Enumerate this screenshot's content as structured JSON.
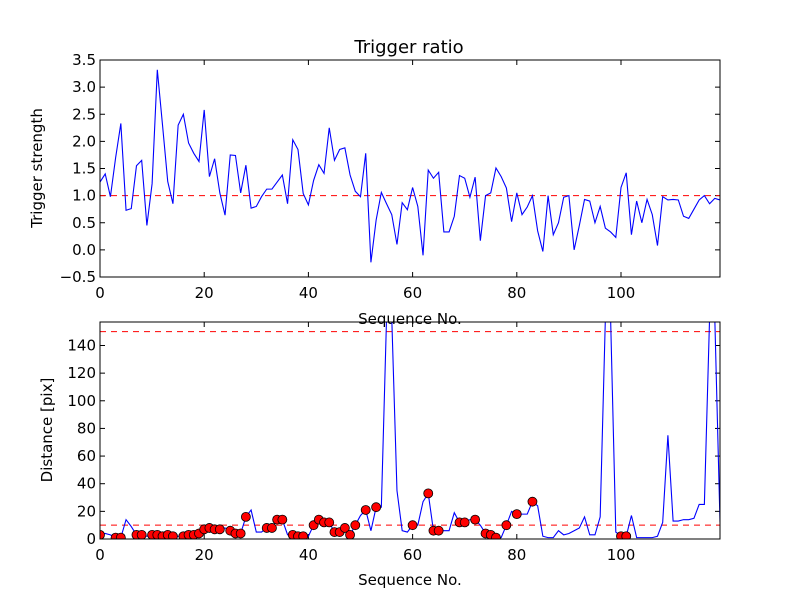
{
  "chart_data": [
    {
      "type": "line",
      "title": "Trigger ratio",
      "xlabel": "Sequence No.",
      "ylabel": "Trigger strength",
      "xlim": [
        0,
        119
      ],
      "ylim": [
        -0.5,
        3.5
      ],
      "xticks": [
        0,
        20,
        40,
        60,
        80,
        100
      ],
      "yticks": [
        -0.5,
        0.0,
        0.5,
        1.0,
        1.5,
        2.0,
        2.5,
        3.0,
        3.5
      ],
      "ytick_labels": [
        "−0.5",
        "0.0",
        "0.5",
        "1.0",
        "1.5",
        "2.0",
        "2.5",
        "3.0",
        "3.5"
      ],
      "grid": false,
      "line_color": "#0000ff",
      "threshold": {
        "value": 1.0,
        "color": "#ff0000",
        "style": "dashed"
      },
      "x": [
        0,
        1,
        2,
        3,
        4,
        5,
        6,
        7,
        8,
        9,
        10,
        11,
        12,
        13,
        14,
        15,
        16,
        17,
        18,
        19,
        20,
        21,
        22,
        23,
        24,
        25,
        26,
        27,
        28,
        29,
        30,
        31,
        32,
        33,
        34,
        35,
        36,
        37,
        38,
        39,
        40,
        41,
        42,
        43,
        44,
        45,
        46,
        47,
        48,
        49,
        50,
        51,
        52,
        53,
        54,
        55,
        56,
        57,
        58,
        59,
        60,
        61,
        62,
        63,
        64,
        65,
        66,
        67,
        68,
        69,
        70,
        71,
        72,
        73,
        74,
        75,
        76,
        77,
        78,
        79,
        80,
        81,
        82,
        83,
        84,
        85,
        86,
        87,
        88,
        89,
        90,
        91,
        92,
        93,
        94,
        95,
        96,
        97,
        98,
        99,
        100,
        101,
        102,
        103,
        104,
        105,
        106,
        107,
        108,
        109,
        110,
        111,
        112,
        113,
        114,
        115,
        116,
        117,
        118,
        119
      ],
      "y": [
        1.25,
        1.4,
        0.98,
        1.7,
        2.33,
        0.73,
        0.76,
        1.55,
        1.65,
        0.45,
        1.22,
        3.32,
        2.3,
        1.26,
        0.85,
        2.3,
        2.5,
        1.97,
        1.78,
        1.63,
        2.58,
        1.35,
        1.68,
        1.05,
        0.64,
        1.75,
        1.74,
        1.05,
        1.56,
        0.77,
        0.8,
        0.98,
        1.12,
        1.12,
        1.25,
        1.38,
        0.85,
        2.03,
        1.85,
        1.04,
        0.83,
        1.28,
        1.57,
        1.41,
        2.25,
        1.65,
        1.85,
        1.88,
        1.38,
        1.08,
        0.98,
        1.78,
        -0.23,
        0.55,
        1.06,
        0.85,
        0.65,
        0.1,
        0.87,
        0.74,
        1.15,
        0.8,
        -0.1,
        1.47,
        1.32,
        1.43,
        0.33,
        0.33,
        0.62,
        1.37,
        1.32,
        0.97,
        1.34,
        0.17,
        1.0,
        1.05,
        1.51,
        1.35,
        1.14,
        0.52,
        1.05,
        0.65,
        0.79,
        1.0,
        0.35,
        -0.03,
        1.0,
        0.28,
        0.5,
        0.97,
        1.0,
        0.0,
        0.45,
        0.93,
        0.9,
        0.5,
        0.8,
        0.4,
        0.33,
        0.23,
        1.15,
        1.42,
        0.28,
        0.9,
        0.5,
        0.93,
        0.65,
        0.08,
        0.98,
        0.92,
        0.93,
        0.92,
        0.62,
        0.58,
        0.75,
        0.92,
        1.0,
        0.85,
        0.95,
        0.92
      ]
    },
    {
      "type": "line",
      "title": "",
      "xlabel": "Sequence No.",
      "ylabel": "Distance [pix]",
      "xlim": [
        0,
        119
      ],
      "ylim": [
        0,
        157
      ],
      "xticks": [
        0,
        20,
        40,
        60,
        80,
        100
      ],
      "yticks": [
        0,
        20,
        40,
        60,
        80,
        100,
        120,
        140
      ],
      "grid": false,
      "line_color": "#0000ff",
      "thresholds": [
        {
          "value": 150,
          "color": "#ff0000",
          "style": "dashed"
        },
        {
          "value": 10,
          "color": "#ff0000",
          "style": "dashed"
        }
      ],
      "marker_color": "#ff0000",
      "x": [
        0,
        1,
        2,
        3,
        4,
        5,
        6,
        7,
        8,
        9,
        10,
        11,
        12,
        13,
        14,
        15,
        16,
        17,
        18,
        19,
        20,
        21,
        22,
        23,
        24,
        25,
        26,
        27,
        28,
        29,
        30,
        31,
        32,
        33,
        34,
        35,
        36,
        37,
        38,
        39,
        40,
        41,
        42,
        43,
        44,
        45,
        46,
        47,
        48,
        49,
        50,
        51,
        52,
        53,
        54,
        55,
        56,
        57,
        58,
        59,
        60,
        61,
        62,
        63,
        64,
        65,
        66,
        67,
        68,
        69,
        70,
        71,
        72,
        73,
        74,
        75,
        76,
        77,
        78,
        79,
        80,
        81,
        82,
        83,
        84,
        85,
        86,
        87,
        88,
        89,
        90,
        91,
        92,
        93,
        94,
        95,
        96,
        97,
        98,
        99,
        100,
        101,
        102,
        103,
        104,
        105,
        106,
        107,
        108,
        109,
        110,
        111,
        112,
        113,
        114,
        115,
        116,
        117,
        118,
        119
      ],
      "y": [
        3,
        4,
        3,
        1,
        1,
        14,
        9,
        3,
        3,
        2,
        3,
        3,
        2,
        3,
        2,
        2,
        2,
        3,
        3,
        4,
        7,
        8,
        7,
        7,
        8,
        6,
        4,
        4,
        16,
        21,
        5,
        5,
        8,
        8,
        14,
        14,
        3,
        3,
        2,
        2,
        2,
        10,
        14,
        12,
        12,
        5,
        5,
        8,
        3,
        10,
        17,
        21,
        6,
        23,
        23,
        160,
        160,
        35,
        6,
        5,
        10,
        10,
        27,
        33,
        6,
        6,
        6,
        6,
        19,
        12,
        12,
        14,
        14,
        10,
        4,
        3,
        1,
        1,
        10,
        20,
        18,
        18,
        18,
        27,
        24,
        2,
        1,
        1,
        6,
        3,
        4,
        6,
        8,
        16,
        3,
        3,
        16,
        160,
        160,
        5,
        2,
        2,
        17,
        1,
        1,
        1,
        1,
        2,
        12,
        75,
        13,
        13,
        14,
        14,
        15,
        25,
        25,
        160,
        160,
        12
      ],
      "marked_x": [
        0,
        3,
        4,
        7,
        8,
        10,
        11,
        12,
        13,
        14,
        16,
        17,
        18,
        19,
        20,
        21,
        22,
        23,
        25,
        26,
        27,
        28,
        32,
        33,
        34,
        35,
        37,
        38,
        39,
        41,
        42,
        43,
        44,
        45,
        46,
        47,
        48,
        49,
        51,
        53,
        60,
        63,
        64,
        65,
        69,
        70,
        72,
        74,
        75,
        76,
        78,
        80,
        83,
        100,
        101
      ]
    }
  ]
}
